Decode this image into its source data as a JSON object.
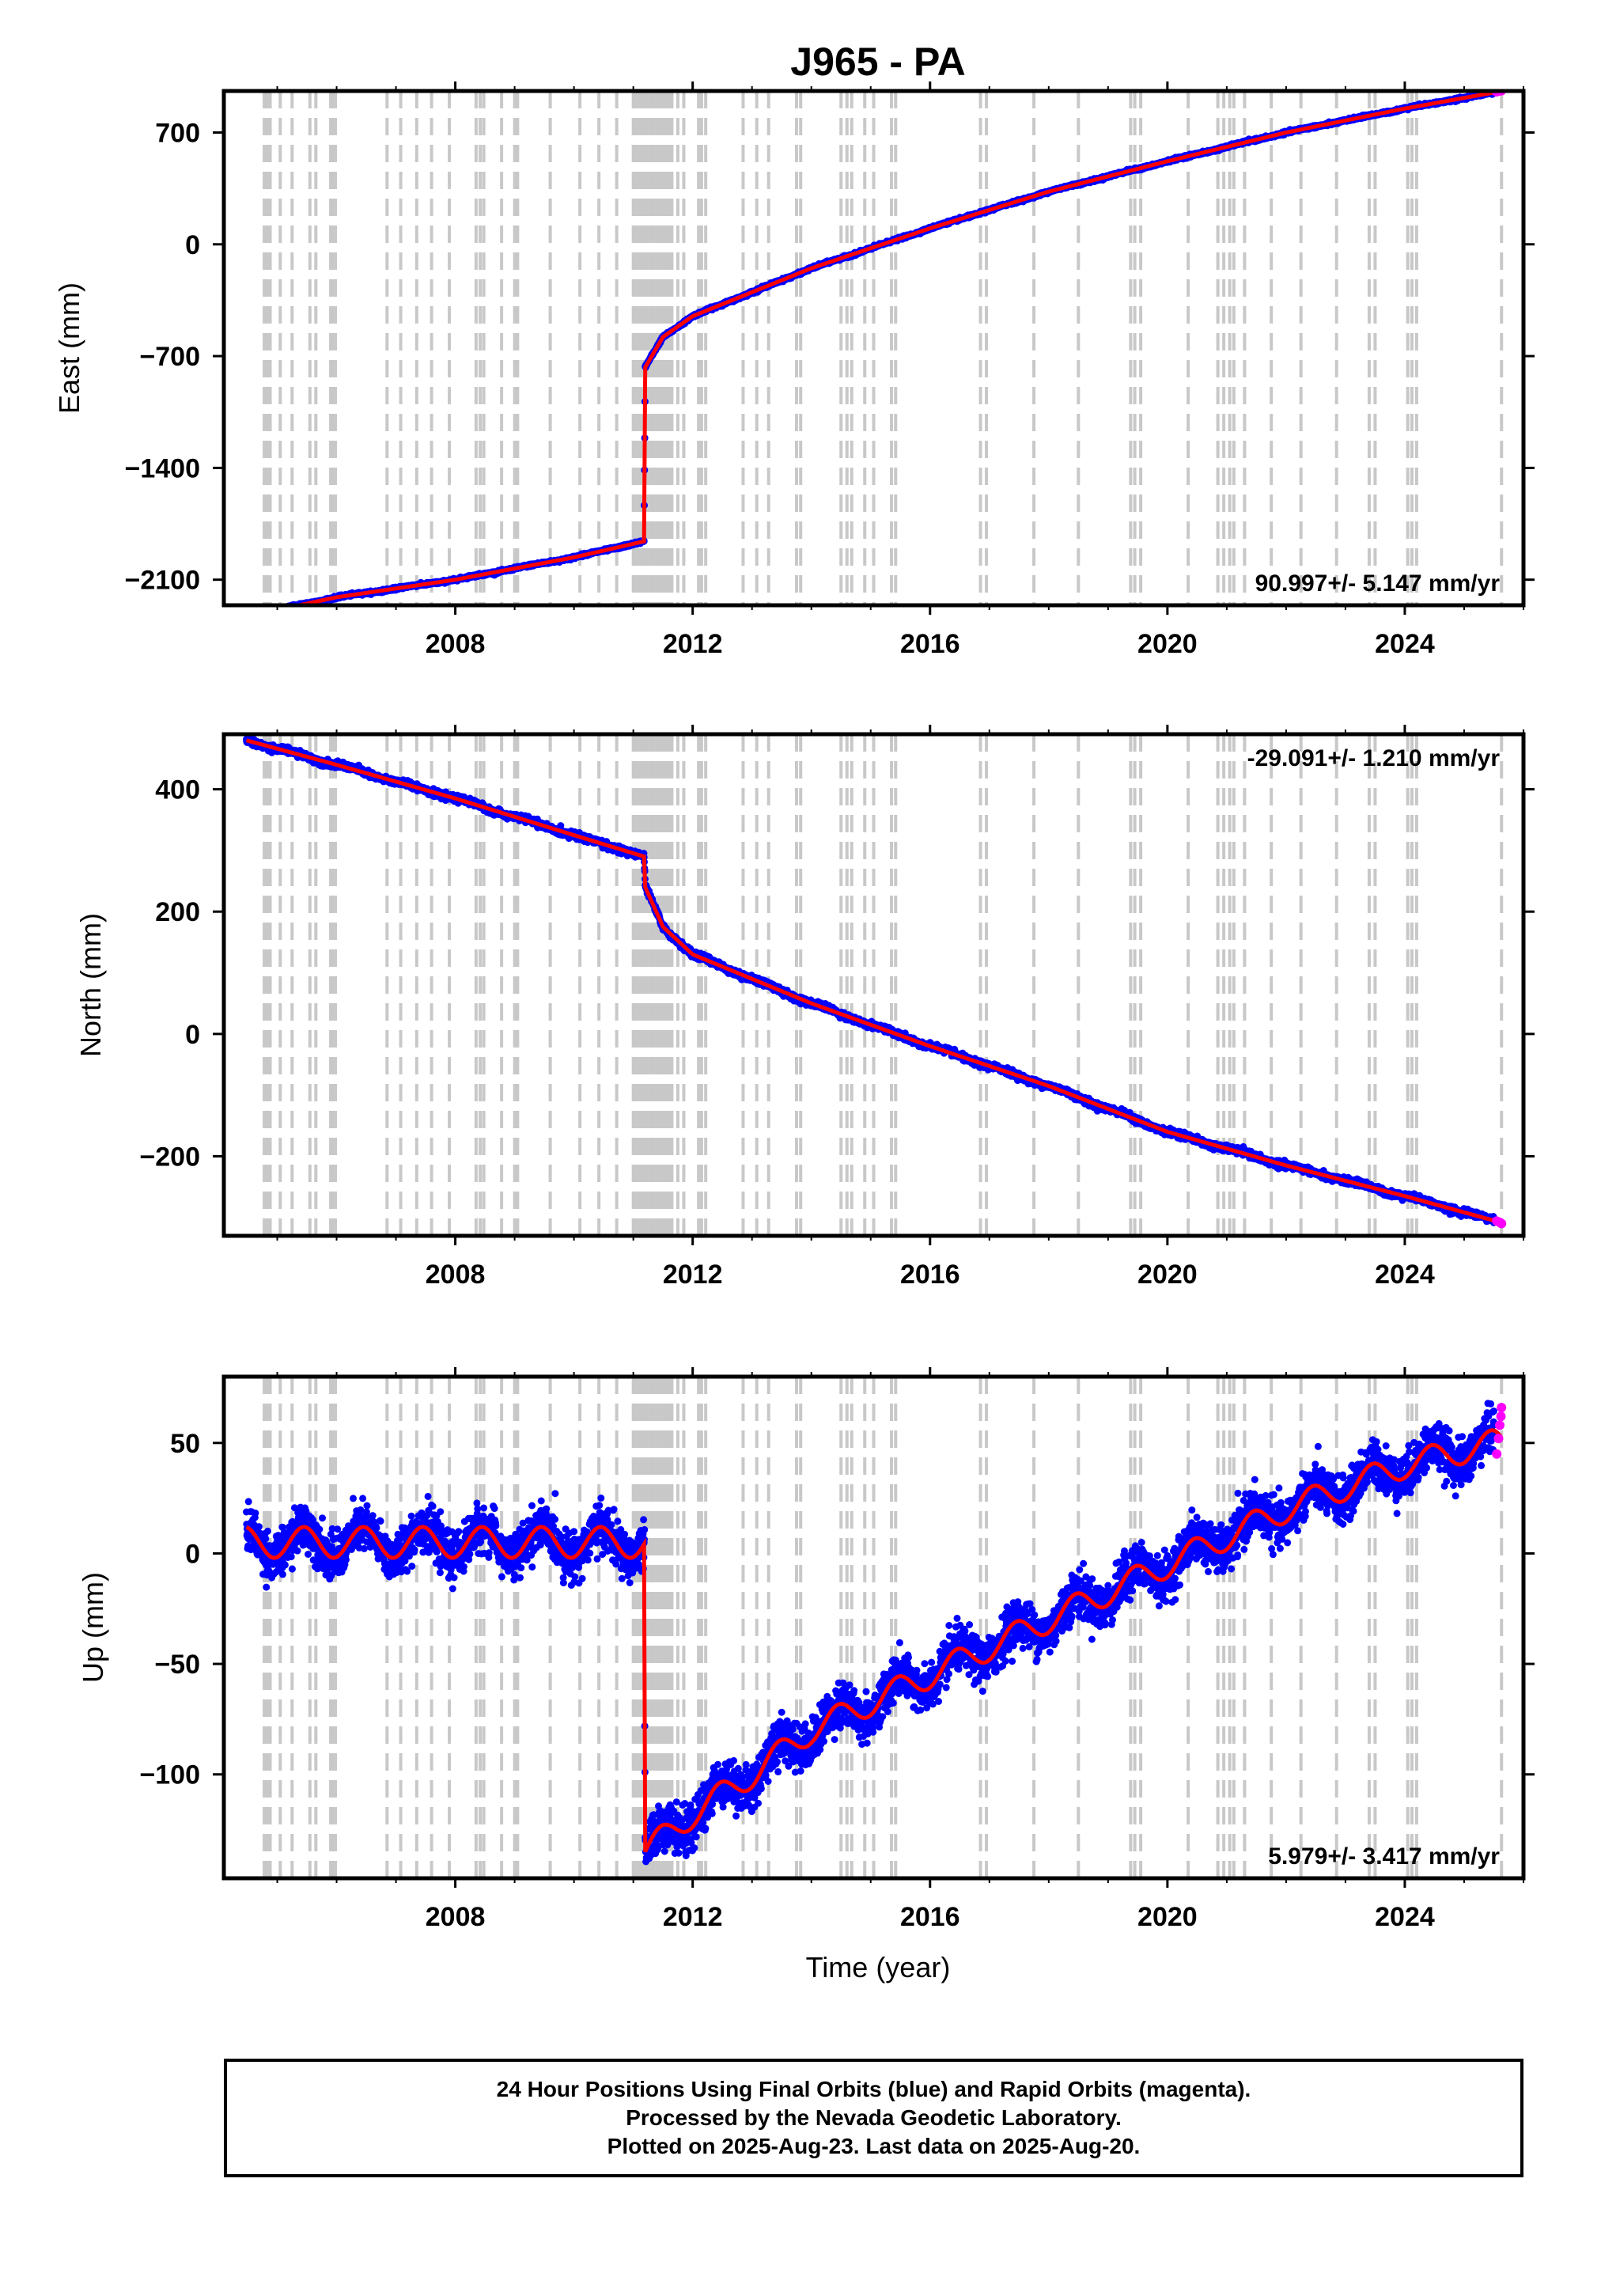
{
  "title": "J965 - PA",
  "footer": {
    "line1": "24 Hour Positions Using Final Orbits (blue) and Rapid Orbits (magenta).",
    "line2": "Processed by the Nevada Geodetic Laboratory.",
    "line3": "Plotted on 2025-Aug-23. Last data on 2025-Aug-20."
  },
  "colors": {
    "final_orbits": "#0000ff",
    "rapid_orbits": "#ff00ff",
    "model": "#ff0000",
    "equipment_change_lines": "#c8c8c8"
  },
  "chart_data": [
    {
      "type": "scatter",
      "component": "East",
      "ylabel": "East (mm)",
      "xlabel": "",
      "xlim": [
        2004.1,
        2026.0
      ],
      "ylim": [
        -2260,
        960
      ],
      "xticks": [
        2008,
        2012,
        2016,
        2020,
        2024
      ],
      "yticks": [
        -2100,
        -1400,
        -700,
        0,
        700
      ],
      "ytick_labels": [
        "−2100",
        "−1400",
        "−700",
        "0",
        "700"
      ],
      "rate_text": "90.997+/- 5.147 mm/yr",
      "rate_position": "bottom-right",
      "first_epoch": 2004.48,
      "last_epoch": 2025.63,
      "offset_epoch": 2011.19,
      "series": [
        {
          "name": "Final Orbits",
          "color": "#0000ff",
          "x": [
            2004.48,
            2006.0,
            2008.0,
            2010.0,
            2011.18,
            2011.2,
            2011.5,
            2012.0,
            2014.0,
            2016.0,
            2018.0,
            2020.0,
            2022.0,
            2024.0,
            2025.5
          ],
          "y": [
            -2330,
            -2210,
            -2100,
            -1960,
            -1860,
            -770,
            -580,
            -450,
            -150,
            100,
            330,
            520,
            700,
            850,
            950
          ]
        },
        {
          "name": "Rapid Orbits",
          "color": "#ff00ff",
          "x": [
            2025.55,
            2025.6,
            2025.63
          ],
          "y": [
            955,
            960,
            962
          ]
        }
      ],
      "grid": false
    },
    {
      "type": "scatter",
      "component": "North",
      "ylabel": "North (mm)",
      "xlabel": "",
      "xlim": [
        2004.1,
        2026.0
      ],
      "ylim": [
        -330,
        490
      ],
      "xticks": [
        2008,
        2012,
        2016,
        2020,
        2024
      ],
      "yticks": [
        -200,
        0,
        200,
        400
      ],
      "ytick_labels": [
        "−200",
        "0",
        "200",
        "400"
      ],
      "rate_text": "-29.091+/- 1.210 mm/yr",
      "rate_position": "top-right",
      "first_epoch": 2004.48,
      "last_epoch": 2025.63,
      "offset_epoch": 2011.19,
      "series": [
        {
          "name": "Final Orbits",
          "color": "#0000ff",
          "x": [
            2004.48,
            2006.0,
            2008.0,
            2010.0,
            2011.18,
            2011.2,
            2011.5,
            2012.0,
            2014.0,
            2016.0,
            2018.0,
            2020.0,
            2022.0,
            2024.0,
            2025.5
          ],
          "y": [
            480,
            440,
            385,
            325,
            290,
            240,
            175,
            130,
            50,
            -20,
            -85,
            -160,
            -215,
            -265,
            -305
          ]
        },
        {
          "name": "Rapid Orbits",
          "color": "#ff00ff",
          "x": [
            2025.55,
            2025.6,
            2025.63
          ],
          "y": [
            -306,
            -308,
            -310
          ]
        }
      ],
      "grid": false
    },
    {
      "type": "scatter",
      "component": "Up",
      "ylabel": "Up (mm)",
      "xlabel": "Time (year)",
      "xlim": [
        2004.1,
        2026.0
      ],
      "ylim": [
        -147,
        80
      ],
      "xticks": [
        2008,
        2012,
        2016,
        2020,
        2024
      ],
      "yticks": [
        -100,
        -50,
        0,
        50
      ],
      "ytick_labels": [
        "−100",
        "−50",
        "0",
        "50"
      ],
      "rate_text": "5.979+/- 3.417 mm/yr",
      "rate_position": "bottom-right",
      "first_epoch": 2004.48,
      "last_epoch": 2025.63,
      "offset_epoch": 2011.19,
      "pre_offset_level": 5,
      "pre_seasonal_amplitude": 7,
      "series": [
        {
          "name": "Final Orbits",
          "color": "#0000ff",
          "x": [
            2004.48,
            2006.0,
            2008.0,
            2010.0,
            2011.18,
            2011.2,
            2012.0,
            2013.0,
            2014.0,
            2016.0,
            2018.0,
            2020.0,
            2022.0,
            2024.0,
            2025.5
          ],
          "y": [
            0,
            5,
            5,
            5,
            3,
            -135,
            -118,
            -100,
            -80,
            -55,
            -30,
            -5,
            20,
            40,
            50
          ]
        },
        {
          "name": "Rapid Orbits",
          "color": "#ff00ff",
          "x": [
            2025.55,
            2025.58,
            2025.6,
            2025.62,
            2025.63
          ],
          "y": [
            45,
            52,
            58,
            62,
            66
          ]
        }
      ],
      "grid": false
    }
  ],
  "equipment_change_epochs": [
    2004.78,
    2004.83,
    2004.88,
    2005.05,
    2005.25,
    2005.55,
    2005.65,
    2005.9,
    2005.93,
    2005.98,
    2006.85,
    2007.08,
    2007.35,
    2007.6,
    2007.9,
    2008.35,
    2008.42,
    2008.48,
    2008.78,
    2009.0,
    2009.05,
    2009.6,
    2010.1,
    2010.42,
    2010.72,
    2011.0,
    2011.05,
    2011.1,
    2011.15,
    2011.2,
    2011.25,
    2011.3,
    2011.35,
    2011.4,
    2011.45,
    2011.5,
    2011.55,
    2011.6,
    2011.65,
    2011.75,
    2011.85,
    2012.1,
    2012.15,
    2012.22,
    2012.85,
    2013.08,
    2013.28,
    2013.75,
    2013.82,
    2014.5,
    2014.6,
    2014.68,
    2014.9,
    2015.05,
    2015.35,
    2015.42,
    2016.85,
    2016.95,
    2017.75,
    2018.5,
    2019.38,
    2019.45,
    2019.55,
    2020.35,
    2020.85,
    2020.95,
    2021.05,
    2021.12,
    2021.3,
    2021.75,
    2022.25,
    2022.85,
    2023.4,
    2023.5,
    2024.05,
    2024.12,
    2024.2,
    2025.63
  ]
}
